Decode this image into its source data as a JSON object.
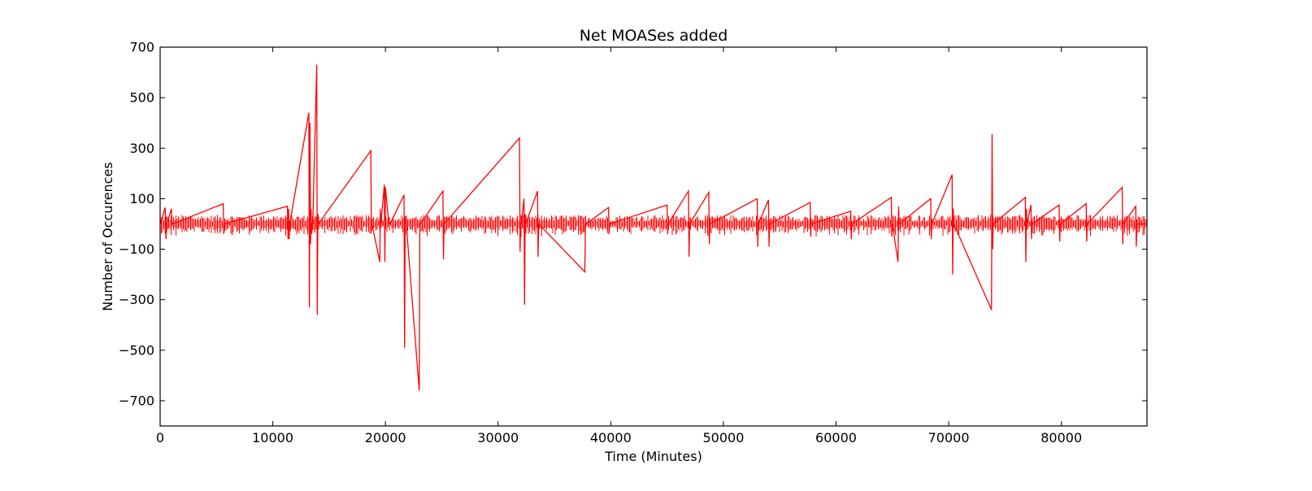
{
  "chart_data": {
    "type": "line",
    "title": "Net MOASes added",
    "xlabel": "Time (Minutes)",
    "ylabel": "Number of Occurences",
    "xlim": [
      0,
      87600
    ],
    "ylim": [
      -800,
      700
    ],
    "x_ticks": [
      0,
      10000,
      20000,
      30000,
      40000,
      50000,
      60000,
      70000,
      80000
    ],
    "y_ticks": [
      -700,
      -500,
      -300,
      -100,
      100,
      300,
      500,
      700
    ],
    "y_tick_labels": [
      "−700",
      "−500",
      "−300",
      "−100",
      "100",
      "300",
      "500",
      "700"
    ],
    "grid": false,
    "legend": "none",
    "series": [
      {
        "color": "#ff0000",
        "x": [
          0,
          450,
          520,
          600,
          1000,
          1050,
          1100,
          5600,
          5650,
          5700,
          11300,
          11350,
          11400,
          11450,
          11500,
          13200,
          13250,
          13300,
          13350,
          13400,
          13450,
          13500,
          13550,
          13900,
          13950,
          14000,
          14050,
          18700,
          18750,
          18800,
          19500,
          19550,
          19600,
          19900,
          19950,
          20000,
          20300,
          20350,
          20400,
          21650,
          21700,
          21750,
          21800,
          21850,
          23000,
          23050,
          23100,
          25100,
          25150,
          25200,
          31900,
          31950,
          32000,
          32050,
          32300,
          32350,
          32400,
          32450,
          33500,
          33550,
          33600,
          37700,
          37750,
          37800,
          39800,
          39850,
          39900,
          45000,
          45050,
          45100,
          46900,
          46950,
          47000,
          48700,
          48750,
          48800,
          53000,
          53050,
          53100,
          54000,
          54050,
          54100,
          57700,
          57750,
          57800,
          61300,
          61350,
          61400,
          64900,
          64950,
          65000,
          65500,
          65550,
          65600,
          68400,
          68450,
          68500,
          70300,
          70350,
          70400,
          70450,
          73800,
          73850,
          73900,
          73950,
          76800,
          76850,
          76900,
          76950,
          77300,
          77350,
          77400,
          79800,
          79850,
          79900,
          82200,
          82250,
          82300,
          85400,
          85450,
          85500,
          86600,
          86650,
          86700,
          87600
        ],
        "y": [
          0,
          65,
          -60,
          0,
          60,
          0,
          0,
          80,
          -40,
          0,
          70,
          -60,
          60,
          -60,
          0,
          440,
          -330,
          400,
          -80,
          60,
          -40,
          0,
          0,
          630,
          -360,
          40,
          0,
          290,
          -30,
          0,
          -150,
          60,
          0,
          155,
          -150,
          145,
          0,
          0,
          0,
          115,
          -490,
          30,
          0,
          0,
          -660,
          0,
          0,
          130,
          -140,
          0,
          340,
          -110,
          0,
          0,
          100,
          -320,
          40,
          0,
          130,
          -130,
          0,
          -190,
          0,
          0,
          65,
          -40,
          0,
          75,
          -40,
          0,
          130,
          -130,
          0,
          125,
          -80,
          0,
          100,
          -90,
          0,
          95,
          -90,
          0,
          85,
          -50,
          0,
          50,
          -60,
          0,
          105,
          -50,
          0,
          -150,
          70,
          0,
          100,
          -60,
          0,
          195,
          -200,
          60,
          0,
          -340,
          355,
          -100,
          0,
          105,
          -150,
          60,
          0,
          75,
          -60,
          0,
          75,
          -70,
          0,
          80,
          -70,
          0,
          145,
          -80,
          0,
          70,
          -90,
          0,
          0
        ]
      }
    ]
  }
}
